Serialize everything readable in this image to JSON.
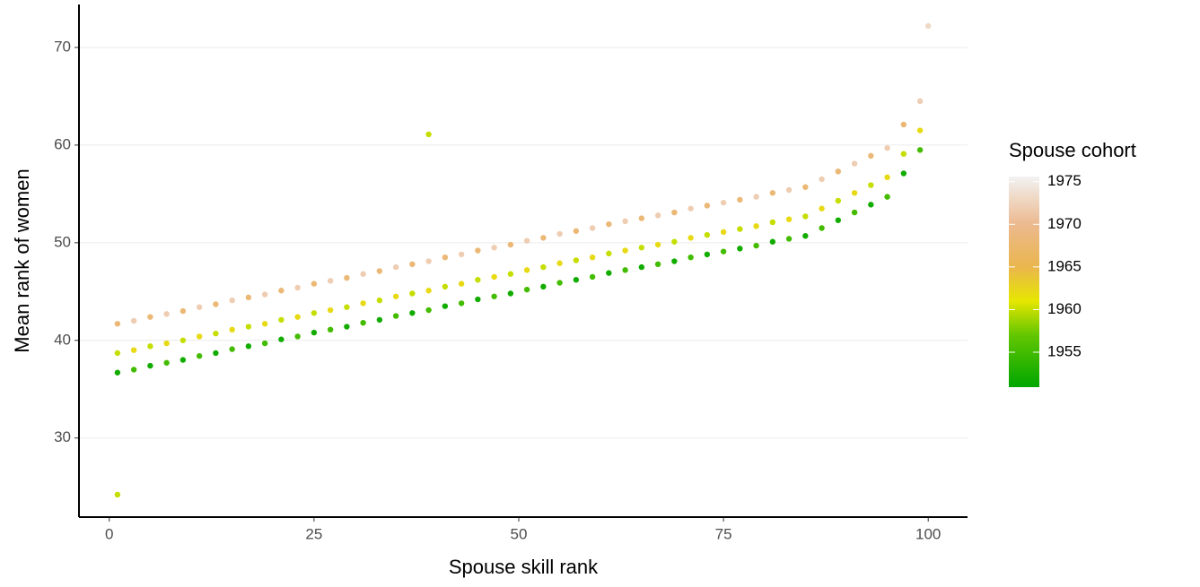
{
  "chart_data": {
    "type": "scatter",
    "x_label": "Spouse skill rank",
    "y_label": "Mean rank of women",
    "legend_title": "Spouse cohort",
    "xlim": [
      -3.7,
      104.8
    ],
    "xticks": [
      0,
      25,
      50,
      75,
      100
    ],
    "ylim": [
      21.9,
      74.4
    ],
    "yticks": [
      30,
      40,
      50,
      60,
      70
    ],
    "grid": true,
    "color_lim": [
      1950.9,
      1975.6
    ],
    "color_ticks": [
      1955,
      1960,
      1965,
      1970,
      1975
    ],
    "colorscale": [
      [
        1950.9,
        "#00A600"
      ],
      [
        1957,
        "#63C600"
      ],
      [
        1961,
        "#E6E600"
      ],
      [
        1965,
        "#EAB64E"
      ],
      [
        1970,
        "#ECB98F"
      ],
      [
        1975.6,
        "#F2F2F2"
      ]
    ],
    "x": [
      1,
      3,
      5,
      7,
      9,
      11,
      13,
      15,
      17,
      19,
      21,
      23,
      25,
      27,
      29,
      31,
      33,
      35,
      37,
      39,
      41,
      43,
      45,
      47,
      49,
      51,
      53,
      55,
      57,
      59,
      61,
      63,
      65,
      67,
      69,
      71,
      73,
      75,
      77,
      79,
      81,
      83,
      85,
      87,
      89,
      91,
      93,
      95,
      97,
      99,
      1,
      3,
      5,
      7,
      9,
      11,
      13,
      15,
      17,
      19,
      21,
      23,
      25,
      27,
      29,
      31,
      33,
      35,
      37,
      39,
      41,
      43,
      45,
      47,
      49,
      51,
      53,
      55,
      57,
      59,
      61,
      63,
      65,
      67,
      69,
      71,
      73,
      75,
      77,
      79,
      81,
      83,
      85,
      87,
      89,
      91,
      93,
      95,
      97,
      99,
      1,
      3,
      5,
      7,
      9,
      11,
      13,
      15,
      17,
      19,
      21,
      23,
      25,
      27,
      29,
      31,
      33,
      35,
      37,
      39,
      41,
      43,
      45,
      47,
      49,
      51,
      53,
      55,
      57,
      59,
      61,
      63,
      65,
      67,
      69,
      71,
      73,
      75,
      77,
      79,
      81,
      83,
      85,
      87,
      89,
      91,
      93,
      95,
      97,
      99,
      1,
      39,
      100
    ],
    "values": [
      36.7,
      37.0,
      37.4,
      37.7,
      38.0,
      38.4,
      38.7,
      39.1,
      39.4,
      39.7,
      40.1,
      40.4,
      40.8,
      41.1,
      41.4,
      41.8,
      42.1,
      42.5,
      42.8,
      43.1,
      43.5,
      43.8,
      44.2,
      44.5,
      44.8,
      45.2,
      45.5,
      45.9,
      46.2,
      46.5,
      46.9,
      47.2,
      47.5,
      47.8,
      48.1,
      48.5,
      48.8,
      49.1,
      49.4,
      49.7,
      50.1,
      50.4,
      50.7,
      51.5,
      52.3,
      53.1,
      53.9,
      54.7,
      57.1,
      59.5,
      38.7,
      39.0,
      39.4,
      39.7,
      40.0,
      40.4,
      40.7,
      41.1,
      41.4,
      41.7,
      42.1,
      42.4,
      42.8,
      43.1,
      43.4,
      43.8,
      44.1,
      44.5,
      44.8,
      45.1,
      45.5,
      45.8,
      46.2,
      46.5,
      46.8,
      47.2,
      47.5,
      47.9,
      48.2,
      48.5,
      48.9,
      49.2,
      49.5,
      49.8,
      50.1,
      50.5,
      50.8,
      51.1,
      51.4,
      51.7,
      52.1,
      52.4,
      52.7,
      53.5,
      54.3,
      55.1,
      55.9,
      56.7,
      59.1,
      61.5,
      41.7,
      42.0,
      42.4,
      42.7,
      43.0,
      43.4,
      43.7,
      44.1,
      44.4,
      44.7,
      45.1,
      45.4,
      45.8,
      46.1,
      46.4,
      46.8,
      47.1,
      47.5,
      47.8,
      48.1,
      48.5,
      48.8,
      49.2,
      49.5,
      49.8,
      50.2,
      50.5,
      50.9,
      51.2,
      51.5,
      51.9,
      52.2,
      52.5,
      52.8,
      53.1,
      53.5,
      53.8,
      54.1,
      54.4,
      54.7,
      55.1,
      55.4,
      55.7,
      56.5,
      57.3,
      58.1,
      58.9,
      59.7,
      62.1,
      64.5,
      24.2,
      61.1,
      72.2
    ],
    "color_values": [
      1952,
      1955,
      1952,
      1955,
      1952,
      1955,
      1952,
      1955,
      1952,
      1955,
      1952,
      1955,
      1952,
      1955,
      1952,
      1955,
      1952,
      1955,
      1952,
      1955,
      1952,
      1955,
      1952,
      1955,
      1952,
      1955,
      1952,
      1955,
      1952,
      1955,
      1952,
      1955,
      1952,
      1955,
      1952,
      1955,
      1952,
      1955,
      1952,
      1955,
      1952,
      1955,
      1952,
      1955,
      1952,
      1955,
      1952,
      1955,
      1952,
      1955,
      1960,
      1962,
      1960,
      1962,
      1960,
      1962,
      1960,
      1962,
      1960,
      1962,
      1960,
      1962,
      1960,
      1962,
      1960,
      1962,
      1960,
      1962,
      1960,
      1962,
      1960,
      1962,
      1960,
      1962,
      1960,
      1962,
      1960,
      1962,
      1960,
      1962,
      1960,
      1962,
      1960,
      1962,
      1960,
      1962,
      1960,
      1962,
      1960,
      1962,
      1960,
      1962,
      1960,
      1962,
      1960,
      1962,
      1960,
      1962,
      1960,
      1962,
      1968,
      1972,
      1968,
      1972,
      1968,
      1972,
      1968,
      1972,
      1968,
      1972,
      1968,
      1972,
      1968,
      1972,
      1968,
      1972,
      1968,
      1972,
      1968,
      1972,
      1968,
      1972,
      1968,
      1972,
      1968,
      1972,
      1968,
      1972,
      1968,
      1972,
      1968,
      1972,
      1968,
      1972,
      1968,
      1972,
      1968,
      1972,
      1968,
      1972,
      1968,
      1972,
      1968,
      1972,
      1968,
      1972,
      1968,
      1972,
      1968,
      1972,
      1960,
      1960,
      1973
    ]
  }
}
